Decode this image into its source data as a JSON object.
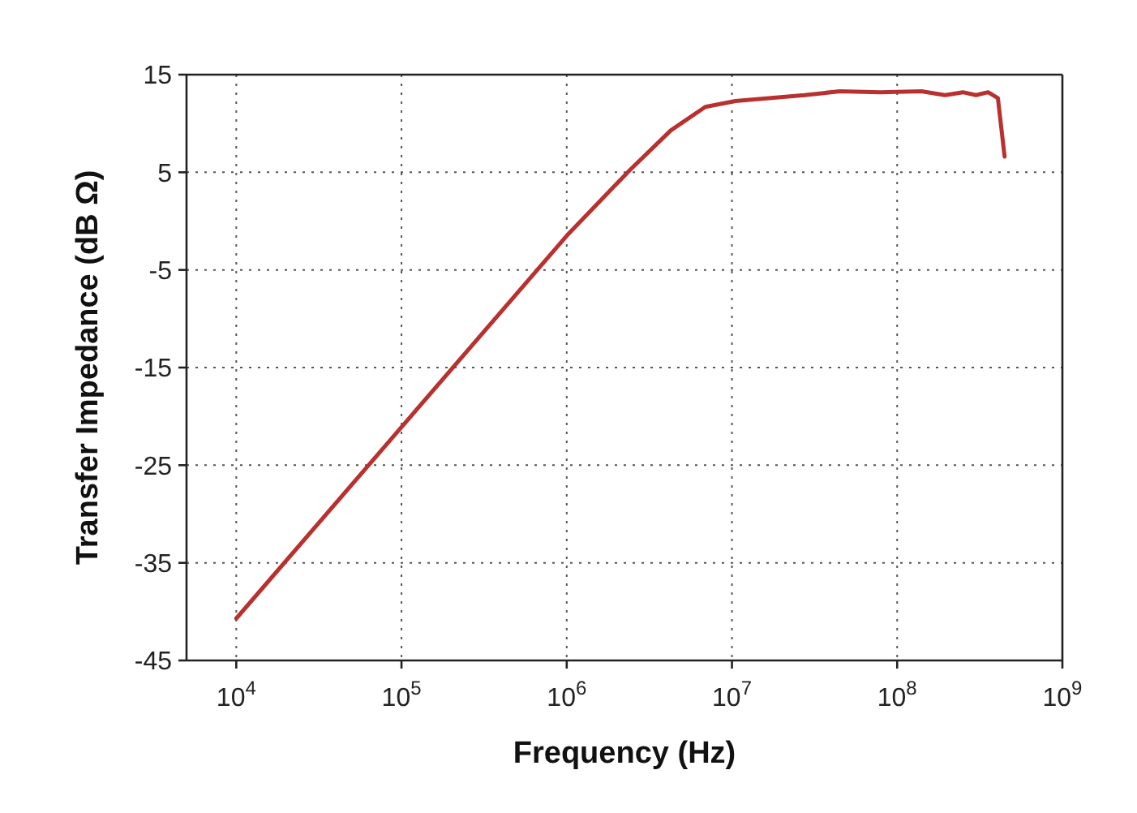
{
  "chart_data": {
    "type": "line",
    "xlabel": "Frequency (Hz)",
    "ylabel": "Transfer Impedance (dB Ω)",
    "log": "x",
    "grid": true,
    "marker": "none",
    "line_style": "solid",
    "xlim": [
      5000,
      1000000000
    ],
    "ylim": [
      -45,
      15
    ],
    "xticks": [
      {
        "value": 10000,
        "label": "10$^{4}$"
      },
      {
        "value": 100000,
        "label": "10$^{5}$"
      },
      {
        "value": 1000000,
        "label": "10$^{6}$"
      },
      {
        "value": 10000000,
        "label": "10$^{7}$"
      },
      {
        "value": 100000000,
        "label": "10$^{8}$"
      },
      {
        "value": 1000000000,
        "label": "10$^{9}$"
      }
    ],
    "yticks": [
      15,
      5,
      -5,
      -15,
      -25,
      -35,
      -45
    ],
    "series": [
      {
        "color": "#b8312f",
        "x": [
          10000,
          100000,
          1000000,
          2400000,
          4270000,
          6900000,
          10500000,
          27500000,
          45000000,
          79000000,
          140000000,
          195000000,
          250000000,
          300000000,
          355000000,
          407000000,
          447000000
        ],
        "values": [
          -40.7,
          -21.1,
          -1.5,
          5.2,
          9.3,
          11.7,
          12.3,
          12.9,
          13.3,
          13.2,
          13.3,
          12.9,
          13.2,
          12.9,
          13.2,
          12.6,
          6.6
        ]
      }
    ]
  }
}
